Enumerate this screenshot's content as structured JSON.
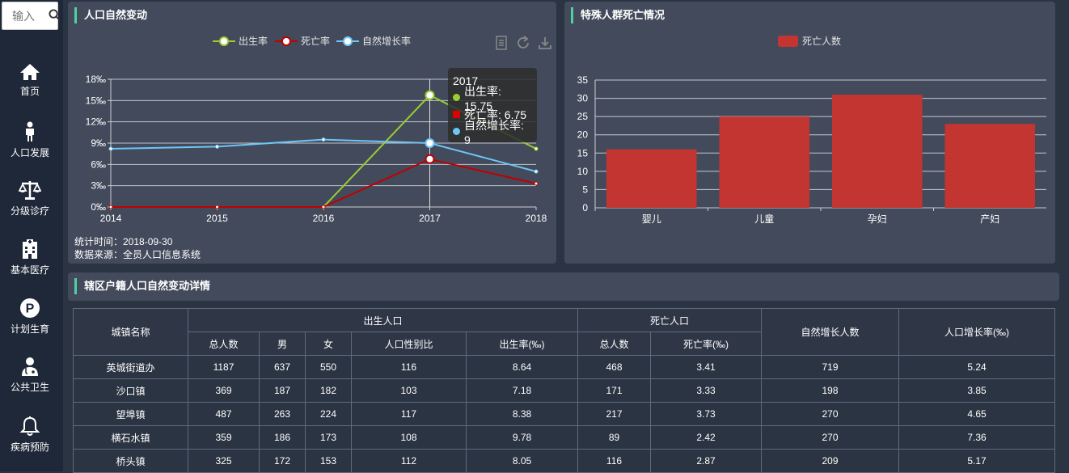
{
  "sidebar": {
    "search_placeholder": "输入",
    "items": [
      {
        "label": "首页",
        "icon": "home-icon"
      },
      {
        "label": "人口发展",
        "icon": "person-icon"
      },
      {
        "label": "分级诊疗",
        "icon": "scales-icon"
      },
      {
        "label": "基本医疗",
        "icon": "hospital-icon"
      },
      {
        "label": "计划生育",
        "icon": "parking-p-icon"
      },
      {
        "label": "公共卫生",
        "icon": "doctor-icon"
      },
      {
        "label": "疾病预防",
        "icon": "bell-icon"
      }
    ]
  },
  "panel1": {
    "title": "人口自然变动",
    "legend": [
      "出生率",
      "死亡率",
      "自然增长率"
    ],
    "stat_time": "统计时间：2018-09-30",
    "data_source": "数据来源：全员人口信息系统",
    "tooltip": {
      "title": "2017",
      "rows": [
        "出生率: 15.75",
        "死亡率: 6.75",
        "自然增长率: 9"
      ]
    }
  },
  "panel2": {
    "title": "特殊人群死亡情况",
    "legend": "死亡人数"
  },
  "panel3": {
    "title": "辖区户籍人口自然变动详情"
  },
  "colors": {
    "birth": "#9acd32",
    "death": "#c00000",
    "growth": "#6ec6f5",
    "bar": "#c23531",
    "accent": "#4fd1a5"
  },
  "chart_data": [
    {
      "type": "line",
      "x": [
        "2014",
        "2015",
        "2016",
        "2017",
        "2018"
      ],
      "ylim": [
        0,
        18
      ],
      "yticks": [
        "0‰",
        "3‰",
        "6‰",
        "9‰",
        "12‰",
        "15‰",
        "18‰"
      ],
      "series": [
        {
          "name": "出生率",
          "values": [
            0,
            0,
            0,
            15.75,
            8.2
          ]
        },
        {
          "name": "死亡率",
          "values": [
            0,
            0,
            0,
            6.75,
            3.3
          ]
        },
        {
          "name": "自然增长率",
          "values": [
            8.2,
            8.5,
            9.5,
            9,
            5
          ]
        }
      ]
    },
    {
      "type": "bar",
      "categories": [
        "婴儿",
        "儿童",
        "孕妇",
        "产妇"
      ],
      "series": [
        {
          "name": "死亡人数",
          "values": [
            16,
            25,
            31,
            23
          ]
        }
      ],
      "ylim": [
        0,
        35
      ],
      "yticks": [
        "0",
        "5",
        "10",
        "15",
        "20",
        "25",
        "30",
        "35"
      ]
    }
  ],
  "table": {
    "h_city": "城镇名称",
    "h_birth": "出生人口",
    "h_death": "死亡人口",
    "h_growth_num": "自然增长人数",
    "h_growth_rate": "人口增长率(‰)",
    "sub": [
      "总人数",
      "男",
      "女",
      "人口性别比",
      "出生率(‰)",
      "总人数",
      "死亡率(‰)"
    ],
    "rows": [
      [
        "英城街道办",
        "1187",
        "637",
        "550",
        "116",
        "8.64",
        "468",
        "3.41",
        "719",
        "5.24"
      ],
      [
        "沙口镇",
        "369",
        "187",
        "182",
        "103",
        "7.18",
        "171",
        "3.33",
        "198",
        "3.85"
      ],
      [
        "望埠镇",
        "487",
        "263",
        "224",
        "117",
        "8.38",
        "217",
        "3.73",
        "270",
        "4.65"
      ],
      [
        "横石水镇",
        "359",
        "186",
        "173",
        "108",
        "9.78",
        "89",
        "2.42",
        "270",
        "7.36"
      ],
      [
        "桥头镇",
        "325",
        "172",
        "153",
        "112",
        "8.05",
        "116",
        "2.87",
        "209",
        "5.17"
      ]
    ]
  }
}
